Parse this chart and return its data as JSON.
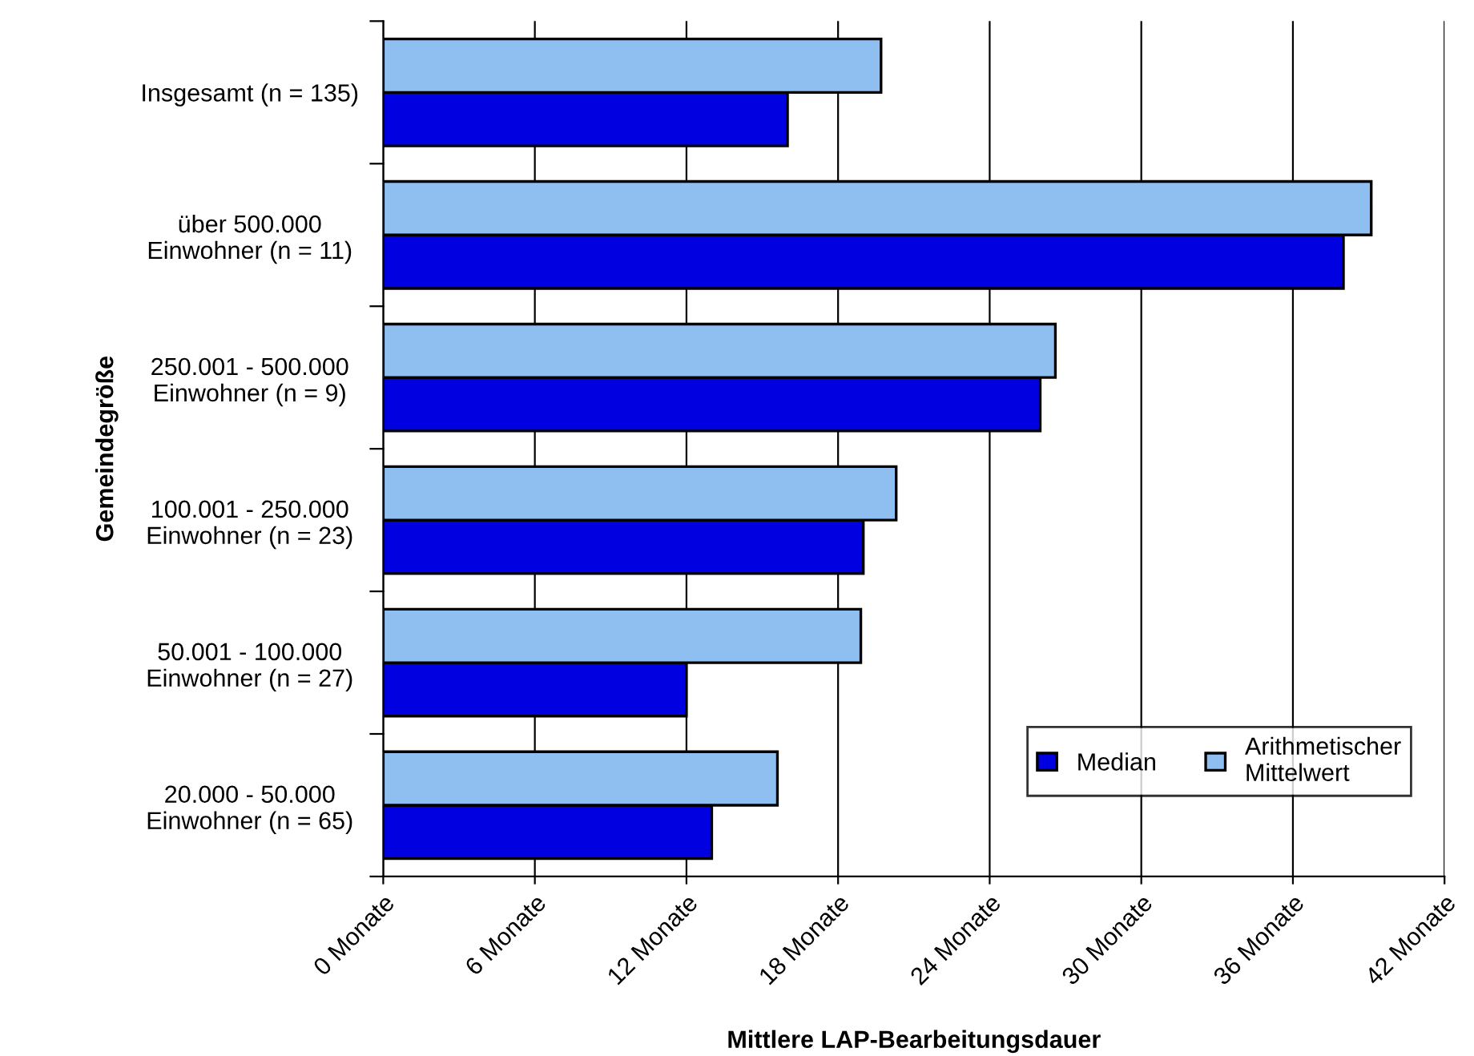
{
  "chart_data": {
    "type": "bar",
    "orientation": "horizontal",
    "xlabel": "Mittlere LAP-Bearbeitungsdauer",
    "ylabel": "Gemeindegröße",
    "categories": [
      "Insgesamt (n = 135)",
      "über 500.000\nEinwohner (n = 11)",
      "250.001 - 500.000\nEinwohner (n = 9)",
      "100.001 - 250.000\nEinwohner (n = 23)",
      "50.001 - 100.000\nEinwohner (n = 27)",
      "20.000 - 50.000\nEinwohner (n = 65)"
    ],
    "series": [
      {
        "name": "Median",
        "color": "#0000e0",
        "values": [
          16.0,
          38.0,
          26.0,
          19.0,
          12.0,
          13.0
        ]
      },
      {
        "name": "Arithmetischer\nMittelwert",
        "color": "#8fbff0",
        "values": [
          19.7,
          39.1,
          26.6,
          20.3,
          18.9,
          15.6
        ]
      }
    ],
    "xlim": [
      0,
      42
    ],
    "xticks": [
      {
        "value": 0,
        "label": "0 Monate"
      },
      {
        "value": 6,
        "label": "6 Monate"
      },
      {
        "value": 12,
        "label": "12 Monate"
      },
      {
        "value": 18,
        "label": "18 Monate"
      },
      {
        "value": 24,
        "label": "24 Monate"
      },
      {
        "value": 30,
        "label": "30 Monate"
      },
      {
        "value": 36,
        "label": "36 Monate"
      },
      {
        "value": 42,
        "label": "42 Monate"
      }
    ],
    "grid": "x",
    "legend": "bottom right"
  }
}
